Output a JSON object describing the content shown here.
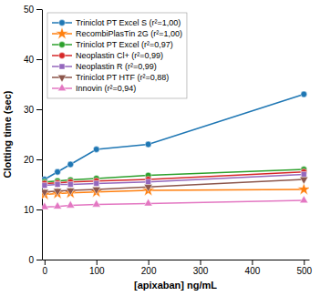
{
  "chart_data": {
    "type": "line",
    "xlabel": "[apixaban] ng/mL",
    "ylabel": "Clotting time (sec)",
    "x": [
      0,
      25,
      50,
      100,
      200,
      500
    ],
    "series": [
      {
        "name": "Triniclot PT Excel S (r²=1,00)",
        "marker": "circle",
        "values": [
          16.0,
          17.5,
          19.0,
          22.0,
          23.0,
          33.0
        ]
      },
      {
        "name": "RecombiPlasTin 2G (r²=1,00)",
        "marker": "star",
        "values": [
          13.0,
          13.2,
          13.3,
          13.5,
          13.8,
          14.0
        ]
      },
      {
        "name": "Triniclot PT Excel (r²=0,97)",
        "marker": "circle",
        "values": [
          15.5,
          15.7,
          15.9,
          16.2,
          16.8,
          18.0
        ]
      },
      {
        "name": "Neoplastin Cl+ (r²=0,99)",
        "marker": "circle",
        "values": [
          15.2,
          15.3,
          15.5,
          15.7,
          16.0,
          17.5
        ]
      },
      {
        "name": "Neoplastin R (r²=0,99)",
        "marker": "square",
        "values": [
          14.8,
          15.0,
          15.0,
          15.2,
          15.5,
          17.0
        ]
      },
      {
        "name": "Triniclot PT HTF (r²=0,88)",
        "marker": "triangle-down",
        "values": [
          13.5,
          13.7,
          13.8,
          14.0,
          14.5,
          16.0
        ]
      },
      {
        "name": "Innovin (r²=0,94)",
        "marker": "triangle-up",
        "values": [
          10.5,
          10.6,
          10.8,
          11.0,
          11.2,
          11.8
        ]
      }
    ],
    "xlim": [
      -5,
      510
    ],
    "ylim": [
      0,
      50
    ],
    "xticks": [
      0,
      100,
      200,
      300,
      400,
      500
    ],
    "yticks": [
      0,
      10,
      20,
      30,
      40,
      50
    ],
    "legend": "upper left",
    "grid": false
  }
}
